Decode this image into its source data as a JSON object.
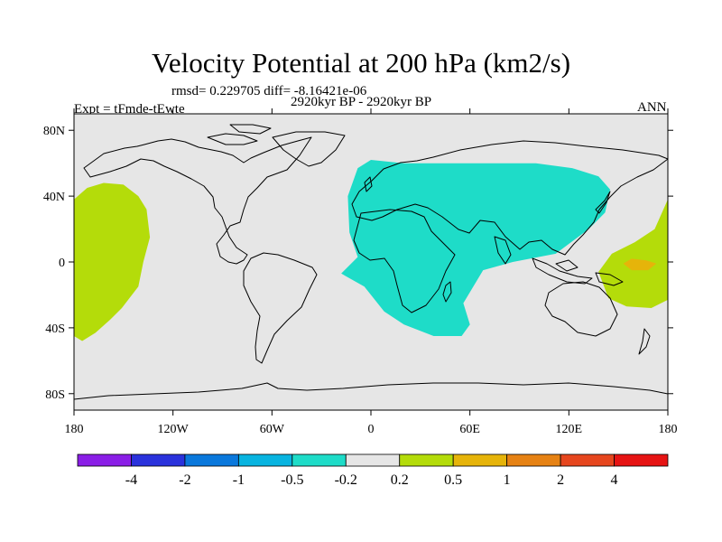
{
  "title": "Velocity Potential at 200 hPa (km2/s)",
  "stats_line": "rmsd= 0.229705 diff= -8.16421e-06",
  "time_line": "2920kyr BP - 2920kyr BP",
  "left_label": "Expt = tFmde-tEwte",
  "right_label": "ANN",
  "chart_data": {
    "type": "heatmap",
    "projection": "cylindrical-equidistant",
    "lon_range": [
      -180,
      180
    ],
    "lat_range": [
      -90,
      90
    ],
    "x_ticks": [
      {
        "value": -180,
        "label": "180"
      },
      {
        "value": -120,
        "label": "120W"
      },
      {
        "value": -60,
        "label": "60W"
      },
      {
        "value": 0,
        "label": "0"
      },
      {
        "value": 60,
        "label": "60E"
      },
      {
        "value": 120,
        "label": "120E"
      },
      {
        "value": 180,
        "label": "180"
      }
    ],
    "y_ticks": [
      {
        "value": 80,
        "label": "80N"
      },
      {
        "value": 40,
        "label": "40N"
      },
      {
        "value": 0,
        "label": "0"
      },
      {
        "value": -40,
        "label": "40S"
      },
      {
        "value": -80,
        "label": "80S"
      }
    ],
    "colorbar": {
      "labels": [
        "-4",
        "-2",
        "-1",
        "-0.5",
        "-0.2",
        "0.2",
        "0.5",
        "1",
        "2",
        "4"
      ],
      "colors": [
        "#8a1ee6",
        "#2a32dc",
        "#0a78dc",
        "#08b4e0",
        "#1edcc8",
        "#e6e6e6",
        "#b4dc0a",
        "#e6b40a",
        "#e68214",
        "#e6461e",
        "#e61414"
      ]
    },
    "background_color": "#e6e6e6",
    "regions": [
      {
        "name": "eastern-pacific-positive",
        "level": "0.2 to 0.5",
        "color": "#b4dc0a",
        "outline": [
          [
            -180,
            38
          ],
          [
            -172,
            45
          ],
          [
            -162,
            48
          ],
          [
            -150,
            47
          ],
          [
            -141,
            40
          ],
          [
            -136,
            32
          ],
          [
            -134,
            15
          ],
          [
            -138,
            0
          ],
          [
            -141,
            -15
          ],
          [
            -151,
            -28
          ],
          [
            -158,
            -35
          ],
          [
            -167,
            -43
          ],
          [
            -175,
            -48
          ],
          [
            -180,
            -45
          ]
        ]
      },
      {
        "name": "africa-asia-negative",
        "level": "-0.5 to -0.2",
        "color": "#1edcc8",
        "outline": [
          [
            -18,
            -7
          ],
          [
            -8,
            3
          ],
          [
            -13,
            18
          ],
          [
            -14,
            40
          ],
          [
            -8,
            57
          ],
          [
            0,
            62
          ],
          [
            20,
            60
          ],
          [
            45,
            60
          ],
          [
            75,
            60
          ],
          [
            100,
            60
          ],
          [
            122,
            57
          ],
          [
            138,
            52
          ],
          [
            145,
            44
          ],
          [
            142,
            30
          ],
          [
            132,
            20
          ],
          [
            112,
            5
          ],
          [
            86,
            0
          ],
          [
            68,
            -5
          ],
          [
            56,
            -25
          ],
          [
            60,
            -38
          ],
          [
            55,
            -45
          ],
          [
            38,
            -45
          ],
          [
            20,
            -38
          ],
          [
            8,
            -30
          ],
          [
            -4,
            -15
          ]
        ]
      },
      {
        "name": "western-pacific-positive",
        "level": "0.2 to 0.5",
        "color": "#b4dc0a",
        "outline": [
          [
            138,
            -6
          ],
          [
            146,
            5
          ],
          [
            160,
            12
          ],
          [
            172,
            20
          ],
          [
            180,
            38
          ],
          [
            180,
            -23
          ],
          [
            170,
            -28
          ],
          [
            155,
            -27
          ],
          [
            144,
            -22
          ]
        ]
      },
      {
        "name": "western-pacific-core",
        "level": "0.5 to 1",
        "color": "#e6b40a",
        "outline": [
          [
            153,
            -1
          ],
          [
            158,
            2
          ],
          [
            167,
            1
          ],
          [
            173,
            -1
          ],
          [
            168,
            -5
          ],
          [
            158,
            -5
          ]
        ]
      }
    ]
  }
}
